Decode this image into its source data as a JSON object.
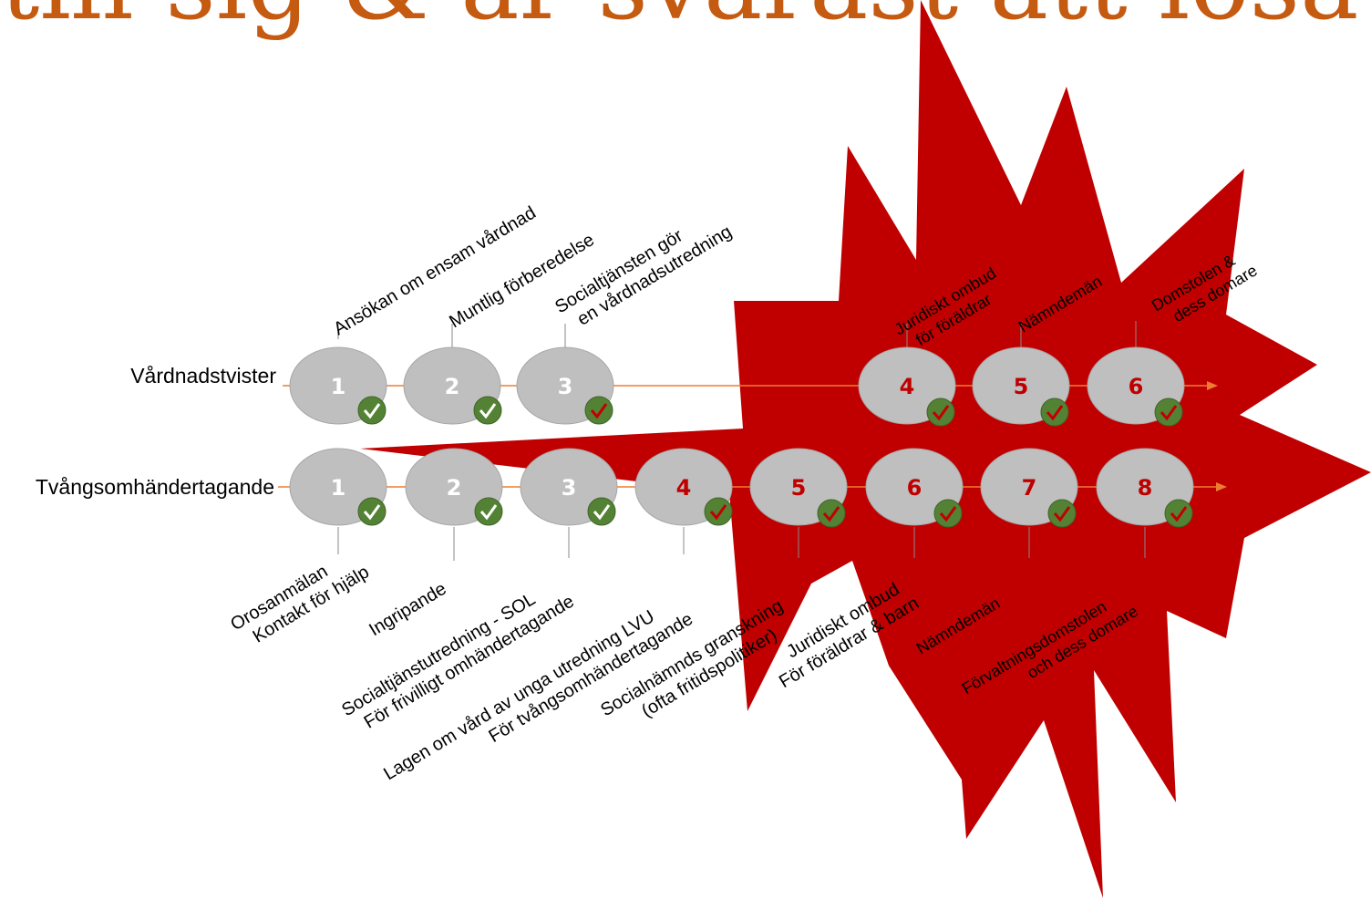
{
  "title": "till sig & är svårast att lösa!",
  "colors": {
    "title": "#c55a11",
    "burst": "#c00000",
    "node_fill": "#bfbfbf",
    "node_stroke": "#a6a6a6",
    "check_fill": "#548235",
    "timeline": "#ed7d31",
    "number_white": "#ffffff",
    "number_red": "#c00000"
  },
  "timelines": [
    {
      "label": "Vårdnadstvister",
      "nodes": [
        {
          "number": "1",
          "text": [
            "Ansökan om ensam vårdnad"
          ],
          "check": "white",
          "number_color": "white"
        },
        {
          "number": "2",
          "text": [
            "Muntlig förberedelse"
          ],
          "check": "white",
          "number_color": "white"
        },
        {
          "number": "3",
          "text": [
            "Socialtjänsten gör",
            "en vårdnadsutredning"
          ],
          "check": "red",
          "number_color": "white"
        },
        {
          "number": "4",
          "text": [
            "Juridiskt ombud",
            "för föräldrar"
          ],
          "check": "red",
          "number_color": "red"
        },
        {
          "number": "5",
          "text": [
            "Nämndemän"
          ],
          "check": "red",
          "number_color": "red"
        },
        {
          "number": "6",
          "text": [
            "Domstolen &",
            "dess domare"
          ],
          "check": "red",
          "number_color": "red"
        }
      ]
    },
    {
      "label": "Tvångsomhändertagande",
      "nodes": [
        {
          "number": "1",
          "text": [
            "Orosanmälan",
            "Kontakt för hjälp"
          ],
          "check": "white",
          "number_color": "white"
        },
        {
          "number": "2",
          "text": [
            "Ingripande"
          ],
          "check": "white",
          "number_color": "white"
        },
        {
          "number": "3",
          "text": [
            "Socialtjänstutredning - SOL",
            "För frivilligt omhändertagande"
          ],
          "check": "white",
          "number_color": "white"
        },
        {
          "number": "4",
          "text": [
            "Lagen om vård av unga utredning LVU",
            "För tvångsomhändertagande"
          ],
          "check": "red",
          "number_color": "red"
        },
        {
          "number": "5",
          "text": [
            "Socialnämnds granskning",
            "(ofta fritidspolitiker)"
          ],
          "check": "red",
          "number_color": "red"
        },
        {
          "number": "6",
          "text": [
            "Juridiskt ombud",
            "För föräldrar & barn"
          ],
          "check": "red",
          "number_color": "red"
        },
        {
          "number": "7",
          "text": [
            "Nämndemän"
          ],
          "check": "red",
          "number_color": "red"
        },
        {
          "number": "8",
          "text": [
            "Förvaltningsdomstolen",
            "och dess domare"
          ],
          "check": "red",
          "number_color": "red"
        }
      ]
    }
  ]
}
